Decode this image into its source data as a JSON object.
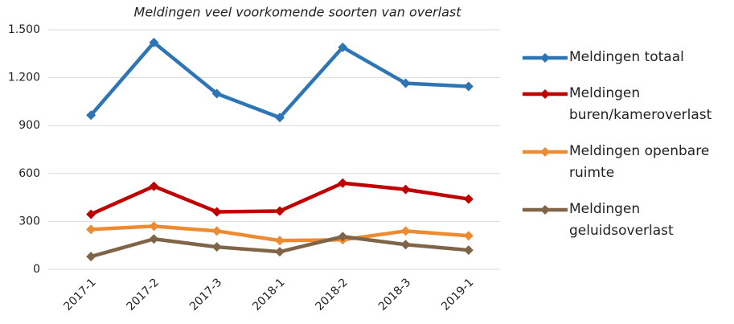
{
  "chart_data": {
    "type": "line",
    "title": "Meldingen veel voorkomende soorten van overlast",
    "categories": [
      "2017-1",
      "2017-2",
      "2017-3",
      "2018-1",
      "2018-2",
      "2018-3",
      "2019-1"
    ],
    "series": [
      {
        "name": "Meldingen totaal",
        "color": "#2e75b6",
        "values": [
          965,
          1420,
          1100,
          950,
          1390,
          1165,
          1145
        ]
      },
      {
        "name": "Meldingen buren/kameroverlast",
        "color": "#c00000",
        "values": [
          345,
          520,
          360,
          365,
          540,
          500,
          440
        ]
      },
      {
        "name": "Meldingen openbare ruimte",
        "color": "#ed8b32",
        "values": [
          250,
          270,
          240,
          180,
          185,
          240,
          210
        ]
      },
      {
        "name": "Meldingen geluidsoverlast",
        "color": "#7f6448",
        "values": [
          80,
          190,
          140,
          110,
          205,
          155,
          120
        ]
      }
    ],
    "ylim": [
      0,
      1500
    ],
    "yticks": [
      0,
      300,
      600,
      900,
      {
        "value": 1200,
        "label": "1.200"
      },
      {
        "value": 1500,
        "label": "1.500"
      }
    ],
    "grid": true,
    "legend": "right"
  }
}
